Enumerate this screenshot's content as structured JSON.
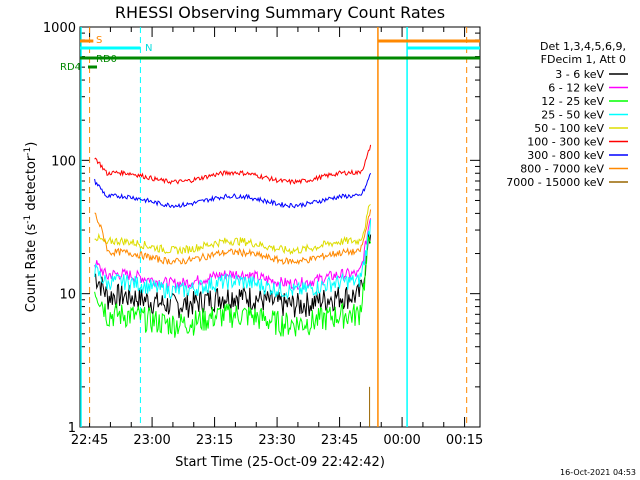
{
  "chart_data": {
    "type": "line",
    "title": "RHESSI Observing Summary Count Rates",
    "xlabel": "Start Time (25-Oct-09 22:42:42)",
    "ylabel_main": "Count Rate (s",
    "ylabel_sup1": "-1",
    "ylabel_mid": " detector",
    "ylabel_sup2": "-1",
    "ylabel_end": ")",
    "y_scale": "log",
    "ylim": [
      1,
      1000
    ],
    "xlim_minutes": [
      0,
      96
    ],
    "y_ticks": [
      "1",
      "10",
      "100",
      "1000"
    ],
    "x_ticks": [
      {
        "label": "22:45",
        "m": 2.3
      },
      {
        "label": "23:00",
        "m": 17.3
      },
      {
        "label": "23:15",
        "m": 32.3
      },
      {
        "label": "23:30",
        "m": 47.3
      },
      {
        "label": "23:45",
        "m": 62.3
      },
      {
        "label": "00:00",
        "m": 77.3
      },
      {
        "label": "00:15",
        "m": 92.3
      }
    ],
    "legend_header": [
      "Det 1,3,4,5,6,9,",
      "FDecim 1, Att 0"
    ],
    "series": [
      {
        "name": "3 - 6 keV",
        "color": "#000000",
        "base": 9,
        "start": 14,
        "noise": 0.22,
        "end": 30
      },
      {
        "name": "6 - 12 keV",
        "color": "#ff00ff",
        "base": 13,
        "start": 17,
        "noise": 0.1,
        "end": 40
      },
      {
        "name": "12 - 25 keV",
        "color": "#00ff00",
        "base": 6.5,
        "start": 11,
        "noise": 0.22,
        "end": 30
      },
      {
        "name": "25 - 50 keV",
        "color": "#00ffff",
        "base": 11.5,
        "start": 15,
        "noise": 0.14,
        "end": 35
      },
      {
        "name": "50 - 100 keV",
        "color": "#dddd00",
        "base": 23,
        "start": 27,
        "noise": 0.07,
        "end": 50
      },
      {
        "name": "100 - 300 keV",
        "color": "#ff0000",
        "base": 75,
        "start": 105,
        "noise": 0.04,
        "end": 130
      },
      {
        "name": "300 - 800 keV",
        "color": "#0000ff",
        "base": 50,
        "start": 70,
        "noise": 0.04,
        "end": 80
      },
      {
        "name": "800 - 7000 keV",
        "color": "#ff8800",
        "base": 19,
        "start": 40,
        "noise": 0.06,
        "end": 45
      },
      {
        "name": "7000 - 15000 keV",
        "color": "#996600",
        "base": 0,
        "start": 0,
        "noise": 0,
        "end": 0
      }
    ],
    "flags": [
      {
        "label": "S",
        "color": "#ff8800"
      },
      {
        "label": "N",
        "color": "#00ffff"
      },
      {
        "label": "RD0",
        "color": "#008800"
      },
      {
        "label": "RD4",
        "color": "#008800"
      }
    ],
    "footer_date": "16-Oct-2021 04:53"
  }
}
